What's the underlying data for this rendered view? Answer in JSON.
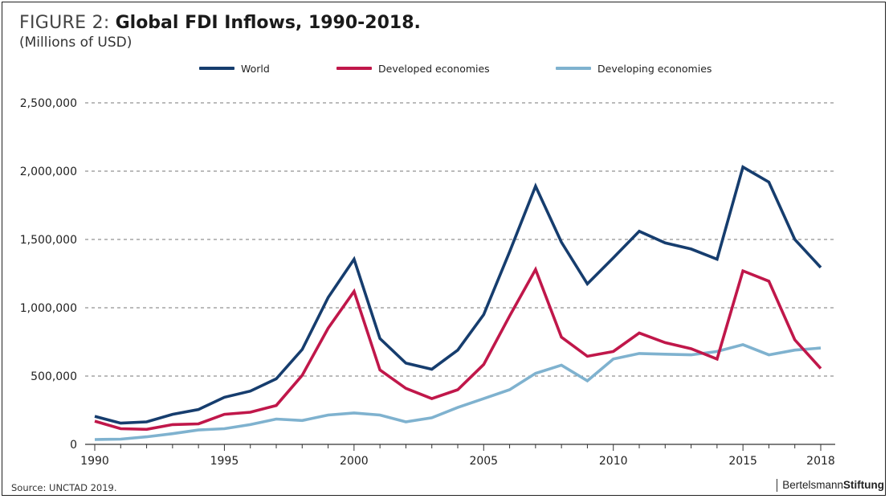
{
  "figure_prefix": "FIGURE 2:",
  "figure_title": "Global FDI Inflows, 1990-2018.",
  "subtitle": "(Millions of USD)",
  "source": "Source: UNCTAD 2019.",
  "brand": {
    "part1": "Bertelsmann",
    "part2": "Stiftung"
  },
  "colors": {
    "world": "#163d6e",
    "developed": "#c0174a",
    "developing": "#7fb2cf",
    "grid": "#777777",
    "axis": "#333333"
  },
  "chart_data": {
    "type": "line",
    "title": "Global FDI Inflows, 1990-2018.",
    "subtitle": "(Millions of USD)",
    "xlabel": "",
    "ylabel": "",
    "x": [
      1990,
      1991,
      1992,
      1993,
      1994,
      1995,
      1996,
      1997,
      1998,
      1999,
      2000,
      2001,
      2002,
      2003,
      2004,
      2005,
      2006,
      2007,
      2008,
      2009,
      2010,
      2011,
      2012,
      2013,
      2014,
      2015,
      2016,
      2017,
      2018
    ],
    "xticks": [
      1990,
      1995,
      2000,
      2005,
      2010,
      2015,
      2018
    ],
    "xtick_labels": [
      "1990",
      "1995",
      "2000",
      "2005",
      "2010",
      "2015",
      "2018"
    ],
    "xlim": [
      1990,
      2018
    ],
    "ylim": [
      0,
      2500000
    ],
    "yticks": [
      0,
      500000,
      1000000,
      1500000,
      2000000,
      2500000
    ],
    "ytick_labels": [
      "0",
      "500,000",
      "1,000,000",
      "1,500,000",
      "2,000,000",
      "2,500,000"
    ],
    "grid": "horizontal dashed",
    "legend_placement": "top",
    "series": [
      {
        "name": "World",
        "color_key": "world",
        "values": [
          205000,
          155000,
          165000,
          220000,
          255000,
          345000,
          390000,
          480000,
          695000,
          1075000,
          1355000,
          775000,
          595000,
          550000,
          690000,
          950000,
          1410000,
          1890000,
          1480000,
          1175000,
          1365000,
          1560000,
          1475000,
          1430000,
          1355000,
          2030000,
          1920000,
          1500000,
          1295000
        ]
      },
      {
        "name": "Developed economies",
        "color_key": "developed",
        "values": [
          170000,
          115000,
          110000,
          145000,
          150000,
          220000,
          235000,
          285000,
          505000,
          850000,
          1120000,
          545000,
          410000,
          335000,
          400000,
          585000,
          940000,
          1280000,
          785000,
          645000,
          680000,
          815000,
          745000,
          700000,
          625000,
          1270000,
          1195000,
          765000,
          555000
        ]
      },
      {
        "name": "Developing economies",
        "color_key": "developing",
        "values": [
          35000,
          38000,
          55000,
          78000,
          105000,
          115000,
          145000,
          185000,
          175000,
          215000,
          230000,
          215000,
          165000,
          195000,
          270000,
          335000,
          400000,
          520000,
          580000,
          465000,
          625000,
          665000,
          660000,
          655000,
          680000,
          730000,
          655000,
          690000,
          705000
        ]
      }
    ]
  }
}
